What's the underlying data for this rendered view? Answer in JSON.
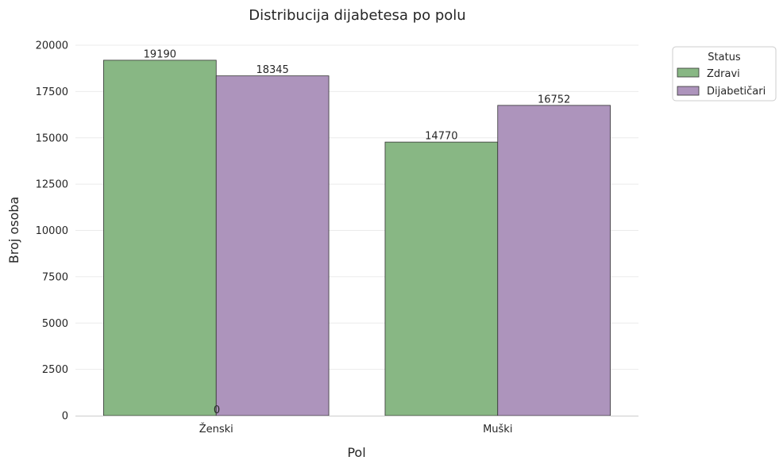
{
  "chart_data": {
    "type": "bar",
    "title": "Distribucija dijabetesa po polu",
    "xlabel": "Pol",
    "ylabel": "Broj osoba",
    "categories": [
      "Ženski",
      "Muški"
    ],
    "series": [
      {
        "name": "Zdravi",
        "values": [
          19190,
          14770
        ],
        "color": "#88b784"
      },
      {
        "name": "Dijabetičari",
        "values": [
          18345,
          16752
        ],
        "color": "#ad94bc"
      }
    ],
    "ylim": [
      0,
      20000
    ],
    "yticks": [
      "0",
      "2500",
      "5000",
      "7500",
      "10000",
      "12500",
      "15000",
      "17500",
      "20000"
    ],
    "extra_annotation": "0",
    "grid": true,
    "legend": {
      "title": "Status",
      "placement": "outside-top-right"
    }
  }
}
